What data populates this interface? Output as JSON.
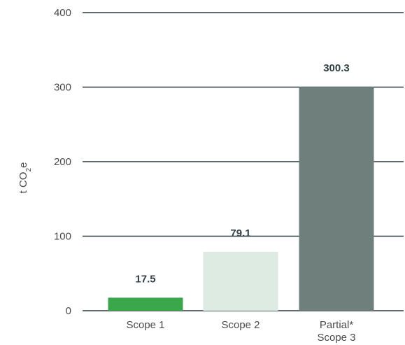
{
  "chart_data": {
    "type": "bar",
    "title": "",
    "xlabel": "",
    "ylabel": "t CO₂e",
    "ylim": [
      0,
      400
    ],
    "yticks": [
      0,
      100,
      200,
      300,
      400
    ],
    "grid": true,
    "legend": "none",
    "categories": [
      "Scope 1",
      "Scope 2",
      "Partial*\nScope 3"
    ],
    "values": [
      17.5,
      79.1,
      300.3
    ],
    "value_labels": [
      "17.5",
      "79.1",
      "300.3"
    ],
    "colors": [
      "#3aa84a",
      "#ddebe3",
      "#6f807c"
    ]
  }
}
